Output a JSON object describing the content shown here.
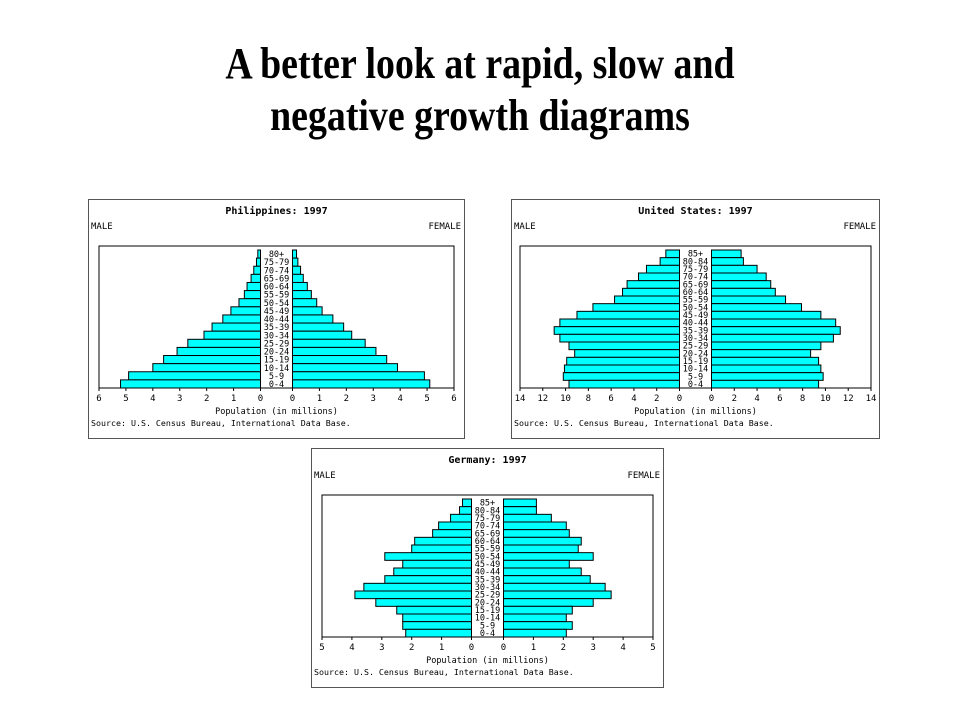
{
  "slide": {
    "title_line1": "A better look at rapid, slow and",
    "title_line2": "negative growth diagrams"
  },
  "colors": {
    "bar_fill": "#00FFFF",
    "bar_stroke": "#000000",
    "text": "#000000"
  },
  "chart_data": [
    {
      "type": "bar",
      "orientation": "horizontal-pyramid",
      "title": "Philippines: 1997",
      "left_label": "MALE",
      "right_label": "FEMALE",
      "xlabel": "Population (in millions)",
      "source": "Source: U.S. Census Bureau, International Data Base.",
      "x_ticks": [
        6,
        5,
        4,
        3,
        2,
        1,
        0
      ],
      "xlim": [
        0,
        6
      ],
      "categories": [
        "80+",
        "75-79",
        "70-74",
        "65-69",
        "60-64",
        "55-59",
        "50-54",
        "45-49",
        "40-44",
        "35-39",
        "30-34",
        "25-29",
        "20-24",
        "15-19",
        "10-14",
        "5-9",
        "0-4"
      ],
      "series": [
        {
          "name": "MALE",
          "values": [
            0.1,
            0.15,
            0.25,
            0.35,
            0.5,
            0.6,
            0.8,
            1.1,
            1.4,
            1.8,
            2.1,
            2.7,
            3.1,
            3.6,
            4.0,
            4.9,
            5.2
          ]
        },
        {
          "name": "FEMALE",
          "values": [
            0.15,
            0.2,
            0.3,
            0.4,
            0.55,
            0.7,
            0.9,
            1.1,
            1.5,
            1.9,
            2.2,
            2.7,
            3.1,
            3.5,
            3.9,
            4.9,
            5.1
          ]
        }
      ]
    },
    {
      "type": "bar",
      "orientation": "horizontal-pyramid",
      "title": "United States: 1997",
      "left_label": "MALE",
      "right_label": "FEMALE",
      "xlabel": "Population (in millions)",
      "source": "Source: U.S. Census Bureau, International Data Base.",
      "x_ticks": [
        14,
        12,
        10,
        8,
        6,
        4,
        2,
        0
      ],
      "xlim": [
        0,
        14
      ],
      "categories": [
        "85+",
        "80-84",
        "75-79",
        "70-74",
        "65-69",
        "60-64",
        "55-59",
        "50-54",
        "45-49",
        "40-44",
        "35-39",
        "30-34",
        "25-29",
        "20-24",
        "15-19",
        "10-14",
        "5-9",
        "0-4"
      ],
      "series": [
        {
          "name": "MALE",
          "values": [
            1.2,
            1.7,
            2.9,
            3.6,
            4.6,
            5.0,
            5.7,
            7.6,
            9.0,
            10.5,
            11.0,
            10.5,
            9.7,
            9.2,
            9.9,
            10.1,
            10.2,
            9.7
          ]
        },
        {
          "name": "FEMALE",
          "values": [
            2.6,
            2.8,
            4.0,
            4.8,
            5.2,
            5.6,
            6.5,
            7.9,
            9.6,
            10.9,
            11.3,
            10.7,
            9.6,
            8.7,
            9.4,
            9.6,
            9.8,
            9.4
          ]
        }
      ]
    },
    {
      "type": "bar",
      "orientation": "horizontal-pyramid",
      "title": "Germany: 1997",
      "left_label": "MALE",
      "right_label": "FEMALE",
      "xlabel": "Population (in millions)",
      "source": "Source: U.S. Census Bureau, International Data Base.",
      "x_ticks": [
        5,
        4,
        3,
        2,
        1,
        0
      ],
      "xlim": [
        0,
        5
      ],
      "categories": [
        "85+",
        "80-84",
        "75-79",
        "70-74",
        "65-69",
        "60-64",
        "55-59",
        "50-54",
        "45-49",
        "40-44",
        "35-39",
        "30-34",
        "25-29",
        "20-24",
        "15-19",
        "10-14",
        "5-9",
        "0-4"
      ],
      "series": [
        {
          "name": "MALE",
          "values": [
            0.3,
            0.4,
            0.7,
            1.1,
            1.3,
            1.9,
            2.0,
            2.9,
            2.3,
            2.6,
            2.9,
            3.6,
            3.9,
            3.2,
            2.5,
            2.3,
            2.3,
            2.2
          ]
        },
        {
          "name": "FEMALE",
          "values": [
            1.1,
            1.1,
            1.6,
            2.1,
            2.2,
            2.6,
            2.5,
            3.0,
            2.2,
            2.6,
            2.9,
            3.4,
            3.6,
            3.0,
            2.3,
            2.1,
            2.3,
            2.1
          ]
        }
      ]
    }
  ]
}
